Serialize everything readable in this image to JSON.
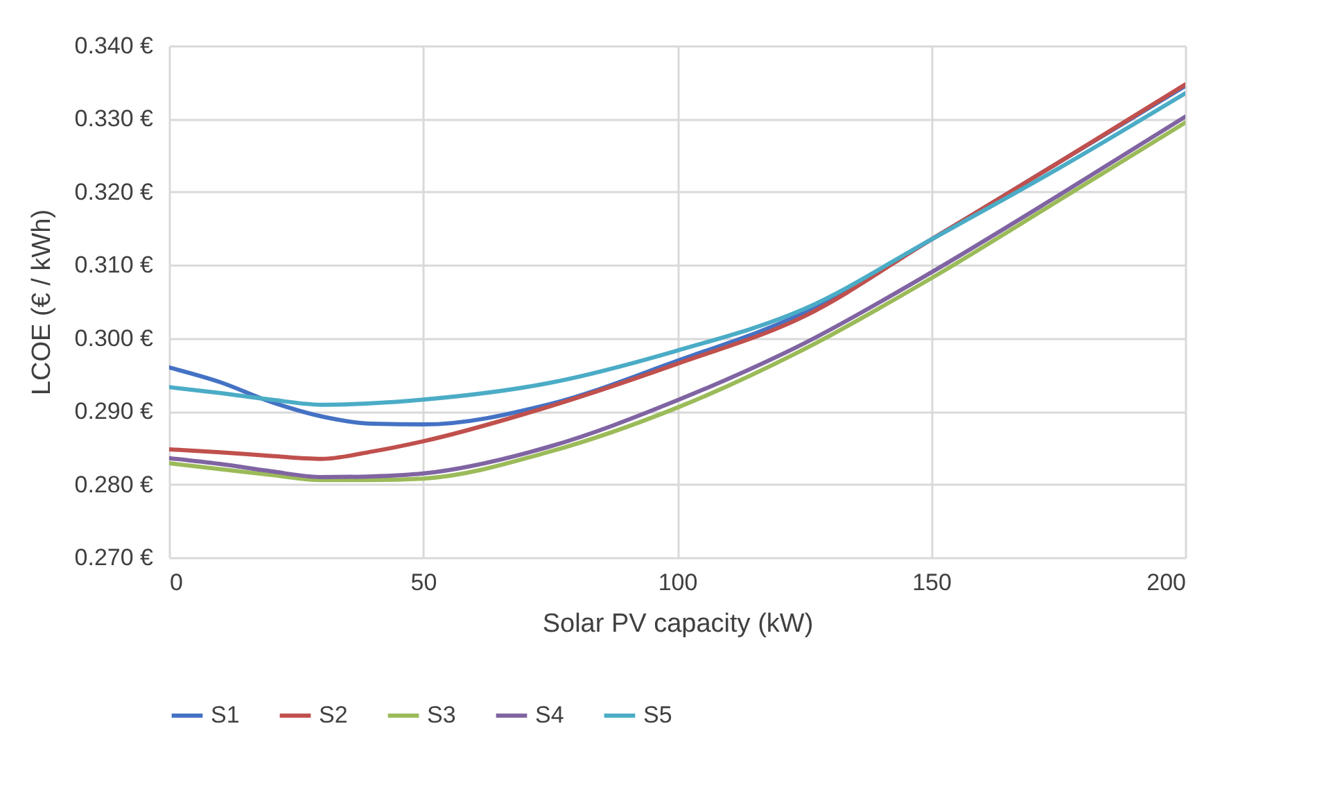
{
  "chart_data": {
    "type": "line",
    "xlabel": "Solar PV capacity (kW)",
    "ylabel": "LCOE (€ / kWh)",
    "x": [
      0,
      10,
      20,
      30,
      40,
      50,
      75,
      100,
      125,
      150,
      175,
      200
    ],
    "series": [
      {
        "name": "S1",
        "color": "#4472c4",
        "values": [
          0.296,
          0.294,
          0.2913,
          0.2893,
          0.2883,
          0.2882,
          0.291,
          0.2969,
          0.3035,
          0.3135,
          0.324,
          0.3345
        ]
      },
      {
        "name": "S2",
        "color": "#c0504d",
        "values": [
          0.2848,
          0.2844,
          0.2839,
          0.2835,
          0.2845,
          0.2859,
          0.2907,
          0.2965,
          0.303,
          0.3135,
          0.324,
          0.3347
        ]
      },
      {
        "name": "S3",
        "color": "#9bbb59",
        "values": [
          0.2829,
          0.2821,
          0.2813,
          0.2806,
          0.2806,
          0.2808,
          0.2845,
          0.2905,
          0.2985,
          0.3082,
          0.3188,
          0.3295
        ]
      },
      {
        "name": "S4",
        "color": "#8064a2",
        "values": [
          0.2836,
          0.2828,
          0.2818,
          0.281,
          0.2811,
          0.2815,
          0.2852,
          0.2915,
          0.2993,
          0.309,
          0.3195,
          0.3303
        ]
      },
      {
        "name": "S5",
        "color": "#4bacc6",
        "values": [
          0.2933,
          0.2925,
          0.2916,
          0.2909,
          0.2911,
          0.2916,
          0.2939,
          0.2983,
          0.304,
          0.3135,
          0.3232,
          0.3335
        ]
      }
    ],
    "xlim": [
      0,
      200
    ],
    "xticks": [
      0,
      50,
      100,
      150,
      200
    ],
    "ylim": [
      0.27,
      0.34
    ],
    "yticks": [
      {
        "value": 0.27,
        "label": "0.270 €"
      },
      {
        "value": 0.28,
        "label": "0.280 €"
      },
      {
        "value": 0.29,
        "label": "0.290 €"
      },
      {
        "value": 0.3,
        "label": "0.300 €"
      },
      {
        "value": 0.31,
        "label": "0.310 €"
      },
      {
        "value": 0.32,
        "label": "0.320 €"
      },
      {
        "value": 0.33,
        "label": "0.330 €"
      },
      {
        "value": 0.34,
        "label": "0.340 €"
      }
    ],
    "grid": true,
    "legend": "bottom",
    "marker": "none",
    "line_style": "solid"
  }
}
